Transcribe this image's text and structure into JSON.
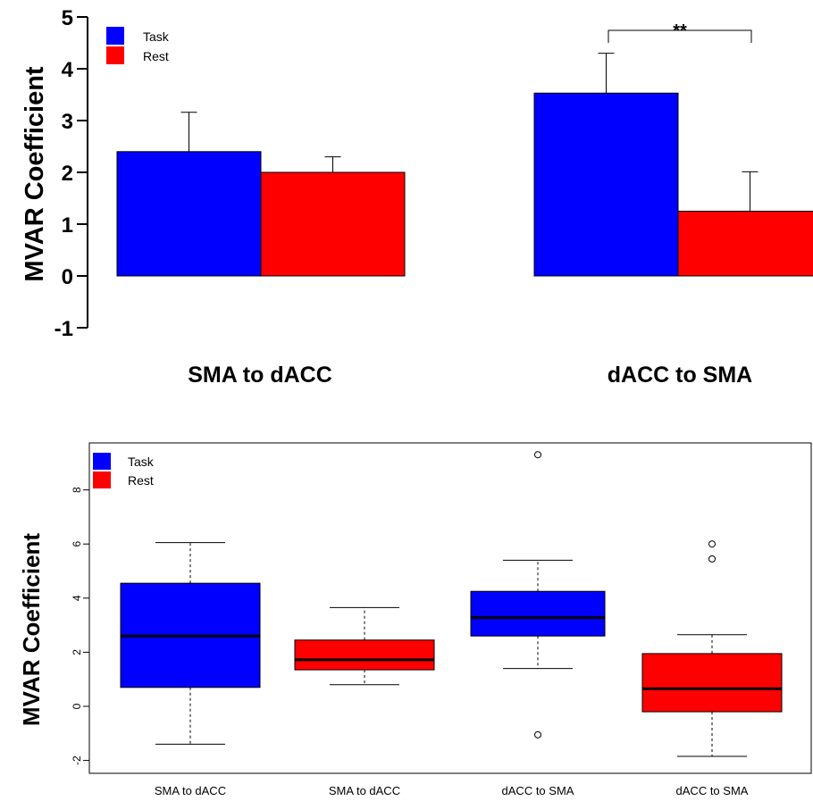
{
  "colors": {
    "task": "#0000ff",
    "rest": "#ff0000"
  },
  "chart_data": [
    {
      "type": "bar",
      "ylabel": "MVAR Coefficient",
      "ylim": [
        -1,
        5
      ],
      "yticks": [
        -1,
        0,
        1,
        2,
        3,
        4,
        5
      ],
      "categories": [
        "SMA to dACC",
        "dACC to SMA"
      ],
      "series": [
        {
          "name": "Task",
          "values": [
            2.4,
            3.53
          ],
          "errors": [
            0.76,
            0.77
          ]
        },
        {
          "name": "Rest",
          "values": [
            2.0,
            1.25
          ],
          "errors": [
            0.3,
            0.76
          ]
        }
      ],
      "legend": {
        "placement": "top-left",
        "entries": [
          "Task",
          "Rest"
        ]
      },
      "annotations": [
        {
          "text": "**"
        }
      ]
    },
    {
      "type": "box",
      "ylabel": "MVAR Coefficient",
      "ylim": [
        -2.4,
        9.8
      ],
      "yticks": [
        -2,
        0,
        2,
        4,
        6,
        8
      ],
      "categories": [
        "SMA to dACC",
        "SMA to dACC",
        "dACC to SMA",
        "dACC to SMA"
      ],
      "boxes": [
        {
          "series": "Task",
          "min": -1.4,
          "q1": 0.7,
          "median": 2.6,
          "q3": 4.55,
          "max": 6.05,
          "outliers": []
        },
        {
          "series": "Rest",
          "min": 0.8,
          "q1": 1.35,
          "median": 1.72,
          "q3": 2.45,
          "max": 3.65,
          "outliers": []
        },
        {
          "series": "Task",
          "min": 1.4,
          "q1": 2.6,
          "median": 3.28,
          "q3": 4.25,
          "max": 5.4,
          "outliers": [
            9.3,
            -1.05
          ]
        },
        {
          "series": "Rest",
          "min": -1.85,
          "q1": -0.2,
          "median": 0.65,
          "q3": 1.95,
          "max": 2.65,
          "outliers": [
            6.0,
            5.45
          ]
        }
      ],
      "legend": {
        "placement": "top-left",
        "entries": [
          "Task",
          "Rest"
        ]
      }
    }
  ]
}
